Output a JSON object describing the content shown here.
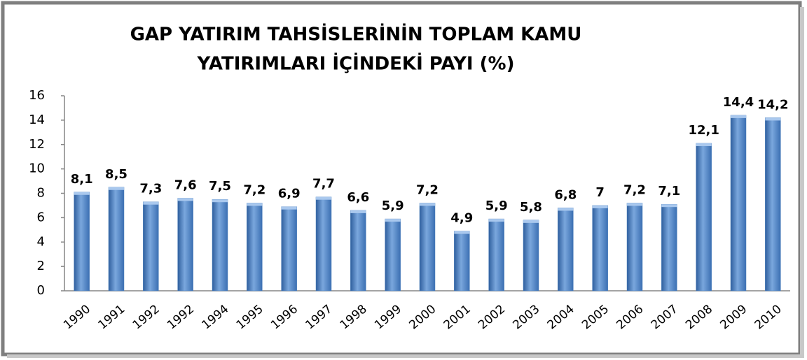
{
  "chart_data": {
    "type": "bar",
    "title": [
      "GAP YATIRIM TAHSİSLERİNİN TOPLAM KAMU",
      "YATIRIMLARI İÇİNDEKİ PAYI (%)"
    ],
    "categories": [
      "1990",
      "1991",
      "1992",
      "1992",
      "1994",
      "1995",
      "1996",
      "1997",
      "1998",
      "1999",
      "2000",
      "2001",
      "2002",
      "2003",
      "2004",
      "2005",
      "2006",
      "2007",
      "2008",
      "2009",
      "2010"
    ],
    "values": [
      8.1,
      8.5,
      7.3,
      7.6,
      7.5,
      7.2,
      6.9,
      7.7,
      6.6,
      5.9,
      7.2,
      4.9,
      5.9,
      5.8,
      6.8,
      7,
      7.2,
      7.1,
      12.1,
      14.4,
      14.2
    ],
    "value_labels": [
      "8,1",
      "8,5",
      "7,3",
      "7,6",
      "7,5",
      "7,2",
      "6,9",
      "7,7",
      "6,6",
      "5,9",
      "7,2",
      "4,9",
      "5,9",
      "5,8",
      "6,8",
      "7",
      "7,2",
      "7,1",
      "12,1",
      "14,4",
      "14,2"
    ],
    "color": "#4f81bd",
    "ylim": [
      0,
      16
    ],
    "yticks": [
      0,
      2,
      4,
      6,
      8,
      10,
      12,
      14,
      16
    ],
    "grid": false
  }
}
